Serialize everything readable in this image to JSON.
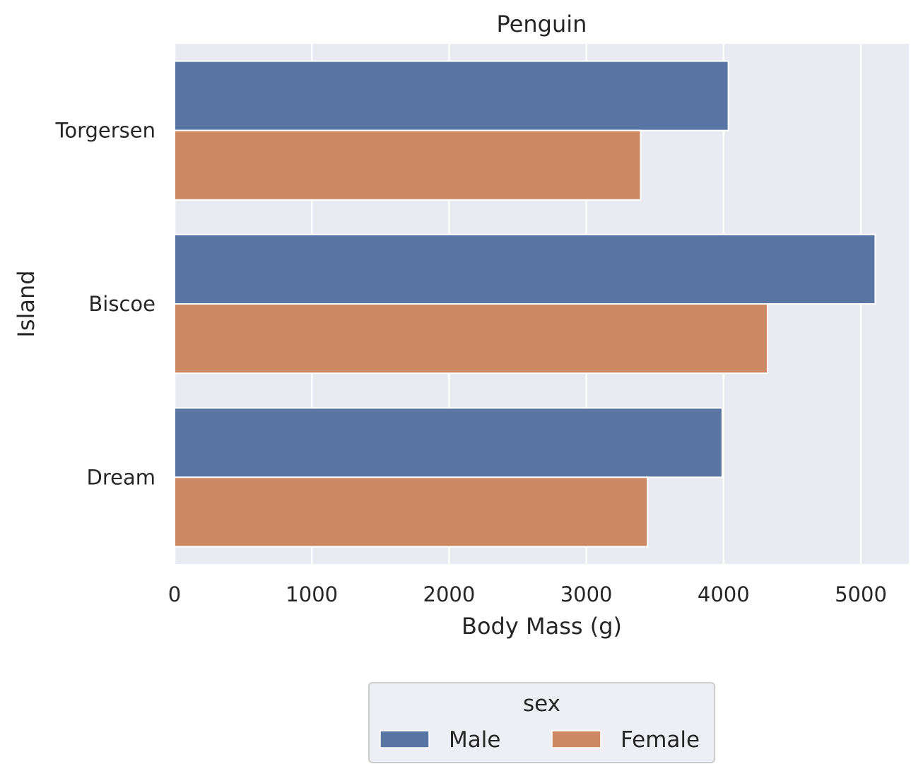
{
  "chart_data": {
    "type": "bar",
    "orientation": "horizontal",
    "title": "Penguin",
    "xlabel": "Body Mass (g)",
    "ylabel": "Island",
    "categories": [
      "Torgersen",
      "Biscoe",
      "Dream"
    ],
    "xlim": [
      0,
      5350
    ],
    "xticks": [
      0,
      1000,
      2000,
      3000,
      4000,
      5000
    ],
    "xtick_labels": [
      "0",
      "1000",
      "2000",
      "3000",
      "4000",
      "5000"
    ],
    "grid": true,
    "legend": {
      "title": "sex",
      "placement": "bottom-center, below axes",
      "ncol": 2
    },
    "series": [
      {
        "name": "Male",
        "color": "#5975a4",
        "values": [
          4035,
          5105,
          3990
        ]
      },
      {
        "name": "Female",
        "color": "#cc8963",
        "values": [
          3396,
          4320,
          3446
        ]
      }
    ]
  }
}
